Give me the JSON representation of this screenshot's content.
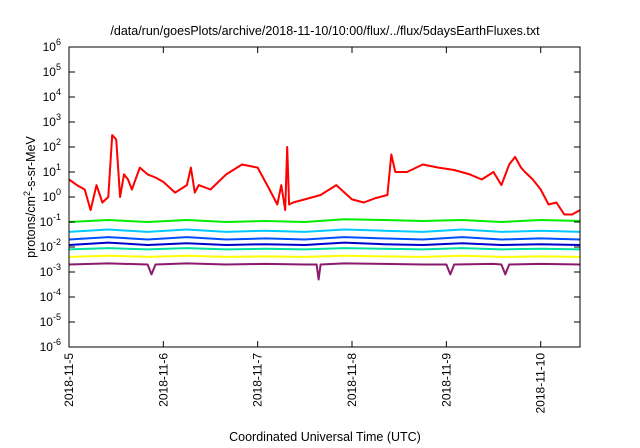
{
  "chart_data": {
    "type": "line",
    "title": "/data/run/goesPlots/archive/2018-11-10/10:00/flux/../flux/5daysEarthFluxes.txt",
    "xlabel": "Coordinated Universal Time (UTC)",
    "ylabel": {
      "base": "protons/cm",
      "sup": "2",
      "rest": "-s-sr-MeV"
    },
    "x_scale": "time",
    "y_scale": "log",
    "xlim": [
      "2018-11-05T00:00",
      "2018-11-10T10:00"
    ],
    "ylim": [
      1e-06,
      1000000.0
    ],
    "x_tick_labels": [
      "2018-11-5",
      "2018-11-6",
      "2018-11-7",
      "2018-11-8",
      "2018-11-9",
      "2018-11-10"
    ],
    "y_tick_exponents": [
      "-6",
      "-5",
      "-4",
      "-3",
      "-2",
      "-1",
      "0",
      "1",
      "2",
      "3",
      "4",
      "5",
      "6"
    ],
    "y_tick_base": "10",
    "grid": false,
    "legend": "none",
    "series": [
      {
        "color": "#ff0000",
        "x": [
          "2018-11-05T00:00",
          "2018-11-05T02:00",
          "2018-11-05T04:00",
          "2018-11-05T05:30",
          "2018-11-05T07:00",
          "2018-11-05T08:30",
          "2018-11-05T10:00",
          "2018-11-05T11:00",
          "2018-11-05T12:00",
          "2018-11-05T13:00",
          "2018-11-05T14:00",
          "2018-11-05T15:00",
          "2018-11-05T16:00",
          "2018-11-05T18:00",
          "2018-11-05T20:00",
          "2018-11-05T22:00",
          "2018-11-06T00:00",
          "2018-11-06T03:00",
          "2018-11-06T06:00",
          "2018-11-06T07:00",
          "2018-11-06T08:00",
          "2018-11-06T09:00",
          "2018-11-06T12:00",
          "2018-11-06T16:00",
          "2018-11-06T20:00",
          "2018-11-07T00:00",
          "2018-11-07T03:00",
          "2018-11-07T05:00",
          "2018-11-07T06:00",
          "2018-11-07T07:00",
          "2018-11-07T07:30",
          "2018-11-07T08:00",
          "2018-11-07T09:00",
          "2018-11-07T12:00",
          "2018-11-07T16:00",
          "2018-11-07T20:00",
          "2018-11-08T00:00",
          "2018-11-08T03:00",
          "2018-11-08T06:00",
          "2018-11-08T09:00",
          "2018-11-08T10:00",
          "2018-11-08T11:00",
          "2018-11-08T14:00",
          "2018-11-08T18:00",
          "2018-11-08T22:00",
          "2018-11-09T02:00",
          "2018-11-09T06:00",
          "2018-11-09T09:00",
          "2018-11-09T12:00",
          "2018-11-09T14:00",
          "2018-11-09T16:00",
          "2018-11-09T17:30",
          "2018-11-09T19:00",
          "2018-11-09T20:00",
          "2018-11-09T22:00",
          "2018-11-10T00:00",
          "2018-11-10T02:00",
          "2018-11-10T04:00",
          "2018-11-10T06:00",
          "2018-11-10T08:00",
          "2018-11-10T10:00"
        ],
        "y": [
          5,
          3,
          2,
          0.3,
          3,
          0.6,
          1.0,
          300,
          200,
          1,
          8,
          5,
          2,
          15,
          8,
          6,
          4,
          1.5,
          3,
          15,
          1.5,
          3,
          2,
          8,
          20,
          15,
          2,
          0.5,
          3,
          0.3,
          100,
          0.5,
          0.6,
          0.8,
          1.2,
          3,
          0.8,
          0.6,
          0.9,
          1.2,
          50,
          10,
          10,
          20,
          15,
          12,
          8,
          5,
          10,
          3,
          20,
          40,
          15,
          10,
          5,
          2,
          0.5,
          0.6,
          0.2,
          0.2,
          0.3
        ]
      },
      {
        "color": "#00ee00",
        "x": [
          "2018-11-05T00:00",
          "2018-11-05T10:00",
          "2018-11-05T20:00",
          "2018-11-06T06:00",
          "2018-11-06T16:00",
          "2018-11-07T02:00",
          "2018-11-07T12:00",
          "2018-11-07T22:00",
          "2018-11-08T08:00",
          "2018-11-08T18:00",
          "2018-11-09T04:00",
          "2018-11-09T14:00",
          "2018-11-10T00:00",
          "2018-11-10T10:00"
        ],
        "y": [
          0.1,
          0.12,
          0.1,
          0.12,
          0.1,
          0.11,
          0.1,
          0.13,
          0.12,
          0.11,
          0.12,
          0.1,
          0.12,
          0.11
        ]
      },
      {
        "color": "#00c8ff",
        "x": [
          "2018-11-05T00:00",
          "2018-11-05T10:00",
          "2018-11-05T20:00",
          "2018-11-06T06:00",
          "2018-11-06T16:00",
          "2018-11-07T02:00",
          "2018-11-07T12:00",
          "2018-11-07T22:00",
          "2018-11-08T08:00",
          "2018-11-08T18:00",
          "2018-11-09T04:00",
          "2018-11-09T14:00",
          "2018-11-10T00:00",
          "2018-11-10T10:00"
        ],
        "y": [
          0.04,
          0.05,
          0.04,
          0.05,
          0.04,
          0.045,
          0.04,
          0.05,
          0.045,
          0.04,
          0.05,
          0.04,
          0.045,
          0.04
        ]
      },
      {
        "color": "#0050ff",
        "x": [
          "2018-11-05T00:00",
          "2018-11-05T10:00",
          "2018-11-05T20:00",
          "2018-11-06T06:00",
          "2018-11-06T16:00",
          "2018-11-07T02:00",
          "2018-11-07T12:00",
          "2018-11-07T22:00",
          "2018-11-08T08:00",
          "2018-11-08T18:00",
          "2018-11-09T04:00",
          "2018-11-09T14:00",
          "2018-11-10T00:00",
          "2018-11-10T10:00"
        ],
        "y": [
          0.02,
          0.025,
          0.02,
          0.025,
          0.02,
          0.022,
          0.02,
          0.025,
          0.022,
          0.02,
          0.025,
          0.02,
          0.022,
          0.02
        ]
      },
      {
        "color": "#0000cc",
        "x": [
          "2018-11-05T00:00",
          "2018-11-05T10:00",
          "2018-11-05T20:00",
          "2018-11-06T06:00",
          "2018-11-06T16:00",
          "2018-11-07T02:00",
          "2018-11-07T12:00",
          "2018-11-07T22:00",
          "2018-11-08T08:00",
          "2018-11-08T18:00",
          "2018-11-09T04:00",
          "2018-11-09T14:00",
          "2018-11-10T00:00",
          "2018-11-10T10:00"
        ],
        "y": [
          0.012,
          0.015,
          0.012,
          0.014,
          0.012,
          0.013,
          0.012,
          0.015,
          0.013,
          0.012,
          0.014,
          0.012,
          0.013,
          0.012
        ]
      },
      {
        "color": "#00e0a0",
        "x": [
          "2018-11-05T00:00",
          "2018-11-05T10:00",
          "2018-11-05T20:00",
          "2018-11-06T06:00",
          "2018-11-06T16:00",
          "2018-11-07T02:00",
          "2018-11-07T12:00",
          "2018-11-07T22:00",
          "2018-11-08T08:00",
          "2018-11-08T18:00",
          "2018-11-09T04:00",
          "2018-11-09T14:00",
          "2018-11-10T00:00",
          "2018-11-10T10:00"
        ],
        "y": [
          0.008,
          0.009,
          0.008,
          0.009,
          0.008,
          0.0085,
          0.008,
          0.009,
          0.0085,
          0.008,
          0.009,
          0.008,
          0.0085,
          0.008
        ]
      },
      {
        "color": "#ffff00",
        "x": [
          "2018-11-05T00:00",
          "2018-11-05T10:00",
          "2018-11-05T20:00",
          "2018-11-06T06:00",
          "2018-11-06T16:00",
          "2018-11-07T02:00",
          "2018-11-07T12:00",
          "2018-11-07T22:00",
          "2018-11-08T08:00",
          "2018-11-08T18:00",
          "2018-11-09T04:00",
          "2018-11-09T14:00",
          "2018-11-10T00:00",
          "2018-11-10T10:00"
        ],
        "y": [
          0.004,
          0.0045,
          0.004,
          0.0045,
          0.004,
          0.0042,
          0.004,
          0.0045,
          0.0042,
          0.004,
          0.0045,
          0.004,
          0.0042,
          0.004
        ]
      },
      {
        "color": "#8b1a6b",
        "x": [
          "2018-11-05T00:00",
          "2018-11-05T10:00",
          "2018-11-05T20:00",
          "2018-11-05T21:00",
          "2018-11-05T22:00",
          "2018-11-06T06:00",
          "2018-11-06T16:00",
          "2018-11-07T02:00",
          "2018-11-07T12:00",
          "2018-11-07T15:00",
          "2018-11-07T15:30",
          "2018-11-07T16:00",
          "2018-11-07T22:00",
          "2018-11-08T08:00",
          "2018-11-08T18:00",
          "2018-11-09T00:00",
          "2018-11-09T01:00",
          "2018-11-09T02:00",
          "2018-11-09T12:00",
          "2018-11-09T14:00",
          "2018-11-09T15:00",
          "2018-11-09T16:00",
          "2018-11-10T00:00",
          "2018-11-10T10:00"
        ],
        "y": [
          0.002,
          0.0022,
          0.002,
          0.0008,
          0.002,
          0.0022,
          0.002,
          0.0021,
          0.002,
          0.002,
          0.0005,
          0.002,
          0.0022,
          0.0021,
          0.002,
          0.002,
          0.0008,
          0.002,
          0.0021,
          0.002,
          0.0008,
          0.002,
          0.0021,
          0.002
        ]
      }
    ]
  }
}
